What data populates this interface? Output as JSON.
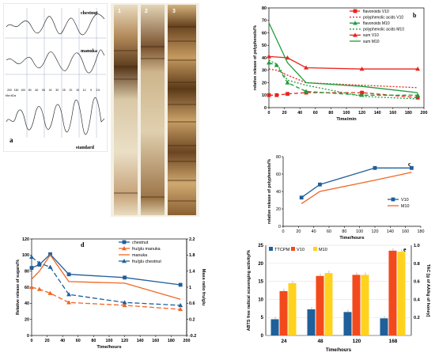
{
  "panel_a": {
    "letter": "a",
    "trace_labels": [
      "chestnut",
      "manuka",
      "standard"
    ],
    "axis_ticks": [
      "200",
      "150",
      "100",
      "80",
      "60",
      "50",
      "40",
      "30",
      "25",
      "20",
      "15",
      "10",
      "5",
      "2.5"
    ],
    "axis_unit": "Mw kDa"
  },
  "gel": {
    "lanes": [
      "1",
      "2",
      "3"
    ]
  },
  "chart_data": [
    {
      "id": "b",
      "type": "line",
      "letter": "b",
      "xlabel": "Time/min",
      "ylabel": "relative release of polyphenols/%",
      "xlim": [
        0,
        200
      ],
      "ylim": [
        0,
        80
      ],
      "xticks": [
        0,
        20,
        40,
        60,
        80,
        100,
        120,
        140,
        160,
        180,
        200
      ],
      "yticks": [
        0,
        10,
        20,
        30,
        40,
        50,
        60,
        70,
        80
      ],
      "legend_position": "top-right",
      "series": [
        {
          "name": "flavonoids V10",
          "color": "#e8241c",
          "dash": "5,3",
          "marker": "square",
          "x": [
            0,
            10,
            24,
            48,
            120,
            192
          ],
          "y": [
            10,
            10,
            11,
            12,
            12,
            8
          ]
        },
        {
          "name": "polyphenolic acids V10",
          "color": "#e8241c",
          "dash": "2,2",
          "marker": "none",
          "x": [
            0,
            10,
            24,
            48,
            120,
            192
          ],
          "y": [
            31,
            30,
            26,
            20,
            18,
            16
          ]
        },
        {
          "name": "flavonoids M10",
          "color": "#1e9e3c",
          "dash": "5,3",
          "marker": "triangle",
          "x": [
            0,
            10,
            24,
            48,
            120,
            192
          ],
          "y": [
            36,
            34,
            20,
            13,
            10,
            10
          ]
        },
        {
          "name": "polyphenolic acids M10",
          "color": "#1e9e3c",
          "dash": "2,2",
          "marker": "none",
          "x": [
            0,
            10,
            24,
            48,
            120,
            192
          ],
          "y": [
            38,
            35,
            22,
            18,
            9,
            7
          ]
        },
        {
          "name": "sum V10",
          "color": "#e8241c",
          "dash": "",
          "marker": "triangle",
          "x": [
            0,
            24,
            48,
            120,
            192
          ],
          "y": [
            41,
            40,
            32,
            31,
            31
          ]
        },
        {
          "name": "sum M10",
          "color": "#1e9e3c",
          "dash": "",
          "marker": "none",
          "x": [
            0,
            24,
            48,
            120,
            192
          ],
          "y": [
            68,
            36,
            20,
            17,
            12
          ]
        }
      ]
    },
    {
      "id": "c",
      "type": "line",
      "letter": "c",
      "xlabel": "Time/hours",
      "ylabel": "relative release of polyphenols/%",
      "xlim": [
        0,
        180
      ],
      "ylim": [
        0,
        80
      ],
      "xticks": [
        0,
        20,
        40,
        60,
        80,
        100,
        120,
        140,
        160,
        180
      ],
      "yticks": [
        0,
        20,
        40,
        60,
        80
      ],
      "legend_position": "bottom-right",
      "series": [
        {
          "name": "V10",
          "color": "#1f5f9a",
          "marker": "square",
          "x": [
            24,
            48,
            120,
            168
          ],
          "y": [
            33,
            48,
            67,
            67
          ]
        },
        {
          "name": "M10",
          "color": "#f26522",
          "marker": "none",
          "x": [
            24,
            48,
            120,
            168
          ],
          "y": [
            26,
            40,
            53,
            62
          ]
        }
      ]
    },
    {
      "id": "d",
      "type": "line",
      "letter": "d",
      "xlabel": "Time/hours",
      "ylabel": "Relative release of sugars/%",
      "y2label": "Mass ratio fru/glu",
      "xlim": [
        0,
        200
      ],
      "ylim": [
        0,
        120
      ],
      "y2lim": [
        -0.2,
        2.2
      ],
      "xticks": [
        0,
        20,
        40,
        60,
        80,
        100,
        120,
        140,
        160,
        180,
        200
      ],
      "yticks": [
        0,
        20,
        40,
        60,
        80,
        100,
        120
      ],
      "y2ticks": [
        -0.2,
        0.2,
        0.6,
        1,
        1.4,
        1.8,
        2.2
      ],
      "legend_position": "top-right",
      "series": [
        {
          "name": "chestnut",
          "color": "#1f5f9a",
          "dash": "",
          "marker": "square",
          "axis": "left",
          "x": [
            0,
            10,
            24,
            48,
            120,
            192
          ],
          "y": [
            84,
            88,
            101,
            76,
            72,
            63
          ]
        },
        {
          "name": "fru/glu manuka",
          "color": "#f26522",
          "dash": "6,3",
          "marker": "triangle",
          "axis": "right",
          "x": [
            0,
            10,
            24,
            48,
            120,
            192
          ],
          "y": [
            1.0,
            0.95,
            0.85,
            0.62,
            0.55,
            0.45
          ]
        },
        {
          "name": "manuka",
          "color": "#f26522",
          "dash": "",
          "marker": "none",
          "axis": "left",
          "x": [
            0,
            10,
            24,
            48,
            120,
            192
          ],
          "y": [
            70,
            80,
            100,
            67,
            65,
            45
          ]
        },
        {
          "name": "fru/glu chestnut",
          "color": "#1f5f9a",
          "dash": "6,3",
          "marker": "triangle",
          "axis": "right",
          "x": [
            0,
            10,
            24,
            48,
            120,
            192
          ],
          "y": [
            1.75,
            1.6,
            1.5,
            0.82,
            0.62,
            0.55
          ]
        }
      ]
    },
    {
      "id": "e",
      "type": "bar",
      "letter": "e",
      "xlabel": "Time/hours",
      "ylabel": "ABTS free radical scavenging activity/%",
      "y2label": "TAC [g of AA/kg of honey]",
      "categories": [
        "24",
        "48",
        "120",
        "168"
      ],
      "ylim": [
        0,
        25
      ],
      "y2lim": [
        0,
        1.0
      ],
      "yticks": [
        0,
        5,
        10,
        15,
        20,
        25
      ],
      "y2ticks": [
        0.2,
        0.4,
        0.6,
        0.8,
        1.0
      ],
      "legend_position": "top-left",
      "series": [
        {
          "name": "TTCPM",
          "color": "#1f5f9a",
          "axis": "right",
          "values": [
            0.18,
            0.29,
            0.26,
            0.19
          ]
        },
        {
          "name": "V10",
          "color": "#f24a1c",
          "axis": "left",
          "values": [
            12.3,
            16.5,
            16.8,
            23.5
          ]
        },
        {
          "name": "M10",
          "color": "#ffd21e",
          "axis": "left",
          "values": [
            14.5,
            17.3,
            16.8,
            23.2
          ]
        }
      ]
    }
  ]
}
